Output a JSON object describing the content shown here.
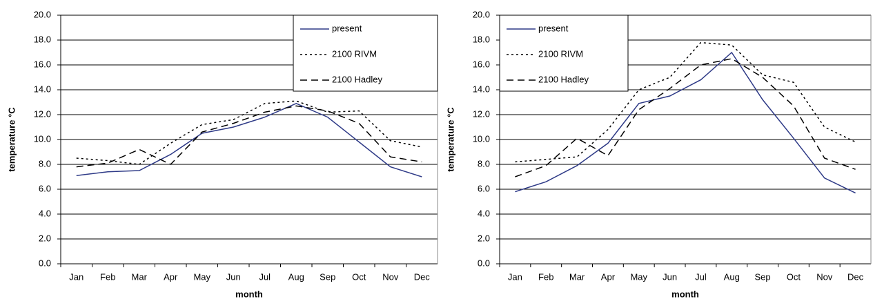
{
  "chart_data": [
    {
      "type": "line",
      "xlabel": "month",
      "ylabel": "temperature °C",
      "categories": [
        "Jan",
        "Feb",
        "Mar",
        "Apr",
        "May",
        "Jun",
        "Jul",
        "Aug",
        "Sep",
        "Oct",
        "Nov",
        "Dec"
      ],
      "series": [
        {
          "name": "present",
          "color": "#2e3a87",
          "dash": "solid",
          "values": [
            7.1,
            7.4,
            7.5,
            8.8,
            10.5,
            11.0,
            11.8,
            12.9,
            11.8,
            9.8,
            7.8,
            7.0
          ]
        },
        {
          "name": "2100 RIVM",
          "color": "#000000",
          "dash": "dotted",
          "values": [
            8.5,
            8.3,
            8.0,
            9.7,
            11.2,
            11.6,
            12.9,
            13.1,
            12.2,
            12.3,
            9.9,
            9.4
          ]
        },
        {
          "name": "2100 Hadley",
          "color": "#000000",
          "dash": "dashed",
          "values": [
            7.8,
            8.1,
            9.2,
            8.0,
            10.6,
            11.3,
            12.2,
            12.7,
            12.3,
            11.3,
            8.6,
            8.2
          ]
        }
      ],
      "ylim": [
        0,
        20
      ],
      "yticks": [
        {
          "value": 0,
          "label": "0.0"
        },
        {
          "value": 2,
          "label": "2.0"
        },
        {
          "value": 4,
          "label": "4.0"
        },
        {
          "value": 6,
          "label": "6.0"
        },
        {
          "value": 8,
          "label": "8.0"
        },
        {
          "value": 10,
          "label": "10.0"
        },
        {
          "value": 12,
          "label": "12.0"
        },
        {
          "value": 14,
          "label": "14.0"
        },
        {
          "value": 16,
          "label": "16.0"
        },
        {
          "value": 18,
          "label": "18.0"
        },
        {
          "value": 20,
          "label": "20.0"
        }
      ],
      "grid": true,
      "legend": "top-right"
    },
    {
      "type": "line",
      "xlabel": "month",
      "ylabel": "temperature °C",
      "categories": [
        "Jan",
        "Feb",
        "Mar",
        "Apr",
        "May",
        "Jun",
        "Jul",
        "Aug",
        "Sep",
        "Oct",
        "Nov",
        "Dec"
      ],
      "series": [
        {
          "name": "present",
          "color": "#2e3a87",
          "dash": "solid",
          "values": [
            5.8,
            6.6,
            7.9,
            9.7,
            12.9,
            13.5,
            14.8,
            17.0,
            13.2,
            10.1,
            6.9,
            5.7
          ]
        },
        {
          "name": "2100 RIVM",
          "color": "#000000",
          "dash": "dotted",
          "values": [
            8.2,
            8.4,
            8.6,
            10.8,
            14.0,
            15.0,
            17.8,
            17.6,
            15.2,
            14.6,
            11.0,
            9.8
          ]
        },
        {
          "name": "2100 Hadley",
          "color": "#000000",
          "dash": "dashed",
          "values": [
            7.0,
            7.9,
            10.1,
            8.7,
            12.4,
            14.1,
            16.0,
            16.5,
            15.0,
            12.7,
            8.5,
            7.6
          ]
        }
      ],
      "ylim": [
        0,
        20
      ],
      "yticks": [
        {
          "value": 0,
          "label": "0.0"
        },
        {
          "value": 2,
          "label": "2.0"
        },
        {
          "value": 4,
          "label": "4.0"
        },
        {
          "value": 6,
          "label": "6.0"
        },
        {
          "value": 8,
          "label": "8.0"
        },
        {
          "value": 10,
          "label": "10.0"
        },
        {
          "value": 12,
          "label": "12.0"
        },
        {
          "value": 14,
          "label": "14.0"
        },
        {
          "value": 16,
          "label": "16.0"
        },
        {
          "value": 18,
          "label": "18.0"
        },
        {
          "value": 20,
          "label": "20.0"
        }
      ],
      "grid": true,
      "legend": "top-left"
    }
  ]
}
